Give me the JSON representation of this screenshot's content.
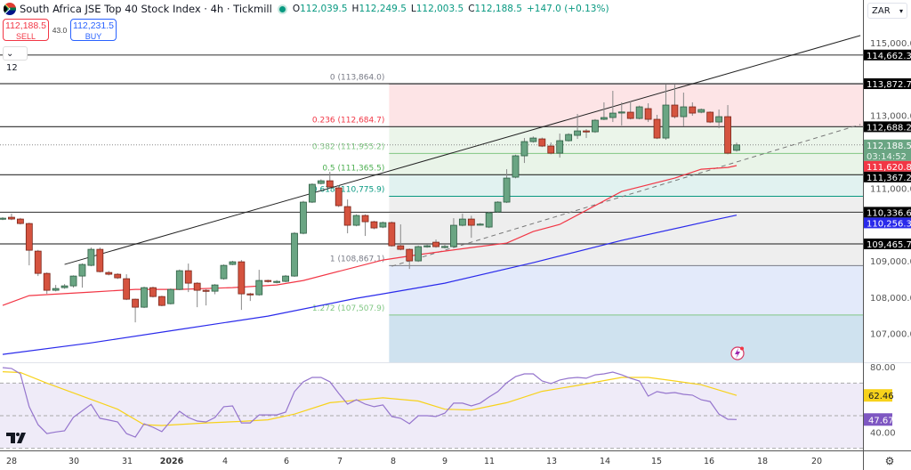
{
  "header": {
    "title": "South Africa JSE Top 40 Stock Index · 4h · Tickmill",
    "ohlc": [
      {
        "k": "O",
        "v": "112,039.5"
      },
      {
        "k": "H",
        "v": "112,249.5"
      },
      {
        "k": "L",
        "v": "112,003.5"
      },
      {
        "k": "C",
        "v": "112,188.5"
      }
    ],
    "change": "+147.0 (+0.13%)"
  },
  "trade": {
    "sell_price": "112,188.5",
    "sell_label": "SELL",
    "spread": "43.0",
    "buy_price": "112,231.5",
    "buy_label": "BUY"
  },
  "indicators_count": "12",
  "currency": "ZAR",
  "colors": {
    "up": "#6aa583",
    "down": "#d5533f",
    "ma_fast": "#f23645",
    "ma_slow": "#2a2aeb",
    "rsi": "#9575cd",
    "rsi_ma": "#f7d21b",
    "price_tag": "#6aa583"
  },
  "chart_data": {
    "type": "candlestick",
    "title": "South Africa JSE Top 40 Stock Index · 4h · Tickmill",
    "ylim": [
      106300,
      116000
    ],
    "price_ticks": [
      "115,000.0",
      "113,000.0",
      "111,000.0",
      "109,000.0",
      "108,000.0",
      "107,000.0"
    ],
    "price_tick_values": [
      115000,
      113000,
      111000,
      109000,
      108000,
      107000
    ],
    "time_labels": [
      "28",
      "30",
      "31",
      "2026",
      "4",
      "6",
      "7",
      "8",
      "9",
      "11",
      "13",
      "14",
      "15",
      "16",
      "18",
      "20"
    ],
    "candles": [
      [
        110149,
        110200,
        110120,
        110173
      ],
      [
        110198,
        110300,
        110120,
        110149
      ],
      [
        110149,
        110180,
        110000,
        110026
      ],
      [
        110026,
        110050,
        108875,
        109291
      ],
      [
        109267,
        109300,
        108581,
        108654
      ],
      [
        108654,
        108680,
        108091,
        108189
      ],
      [
        108189,
        108336,
        108160,
        108238
      ],
      [
        108262,
        108360,
        108230,
        108311
      ],
      [
        108311,
        108600,
        108262,
        108581
      ],
      [
        108581,
        108930,
        108262,
        108900
      ],
      [
        108875,
        109365,
        108850,
        109316
      ],
      [
        109316,
        109365,
        108680,
        108703
      ],
      [
        108679,
        108720,
        108600,
        108630
      ],
      [
        108630,
        108660,
        108500,
        108532
      ],
      [
        108508,
        108630,
        107920,
        107944
      ],
      [
        107944,
        107960,
        107307,
        107724
      ],
      [
        107724,
        108290,
        107700,
        108262
      ],
      [
        108262,
        108290,
        107990,
        108017
      ],
      [
        108017,
        108040,
        107750,
        107772
      ],
      [
        107821,
        108240,
        107800,
        108213
      ],
      [
        108213,
        108760,
        108190,
        108728
      ],
      [
        108728,
        108924,
        108140,
        108385
      ],
      [
        108385,
        108410,
        107724,
        108189
      ],
      [
        108189,
        108220,
        107772,
        108164
      ],
      [
        108164,
        108360,
        108080,
        108336
      ],
      [
        108508,
        108900,
        108480,
        108875
      ],
      [
        108900,
        109000,
        108880,
        108973
      ],
      [
        108973,
        109022,
        107650,
        108091
      ],
      [
        108091,
        108120,
        107895,
        108066
      ],
      [
        108066,
        108752,
        108040,
        108459
      ],
      [
        108459,
        108480,
        108400,
        108434
      ],
      [
        108410,
        108470,
        108380,
        108434
      ],
      [
        108434,
        108610,
        108410,
        108581
      ],
      [
        108581,
        109790,
        108560,
        109757
      ],
      [
        109757,
        110650,
        109730,
        110615
      ],
      [
        110615,
        111130,
        110590,
        111105
      ],
      [
        111129,
        111240,
        111100,
        111202
      ],
      [
        111202,
        111447,
        111000,
        111031
      ],
      [
        111007,
        111080,
        110480,
        110517
      ],
      [
        110492,
        110688,
        109757,
        109978
      ],
      [
        109978,
        110280,
        109950,
        110247
      ],
      [
        110247,
        110280,
        109684,
        110075
      ],
      [
        110075,
        110100,
        109870,
        109904
      ],
      [
        109929,
        110080,
        109900,
        110051
      ],
      [
        110051,
        110080,
        109390,
        109414
      ],
      [
        109414,
        110002,
        109290,
        109316
      ],
      [
        109316,
        109340,
        108777,
        108998
      ],
      [
        108998,
        109420,
        108970,
        109390
      ],
      [
        109390,
        109460,
        109360,
        109414
      ],
      [
        109512,
        109585,
        109360,
        109390
      ],
      [
        109390,
        109440,
        109340,
        109395
      ],
      [
        109390,
        110173,
        109360,
        109978
      ],
      [
        109978,
        110296,
        109950,
        110149
      ],
      [
        110149,
        110240,
        109634,
        109978
      ],
      [
        110002,
        110040,
        109970,
        110010
      ],
      [
        109929,
        110350,
        109900,
        110321
      ],
      [
        110345,
        110640,
        110320,
        110615
      ],
      [
        110615,
        111521,
        110590,
        111276
      ],
      [
        111301,
        111920,
        111270,
        111889
      ],
      [
        111889,
        112378,
        111692,
        112280
      ],
      [
        112280,
        112420,
        112250,
        112378
      ],
      [
        112354,
        112390,
        112130,
        112158
      ],
      [
        112158,
        112256,
        111930,
        111962
      ],
      [
        111962,
        112501,
        111840,
        112305
      ],
      [
        112305,
        112510,
        112280,
        112476
      ],
      [
        112452,
        113040,
        112354,
        112574
      ],
      [
        112574,
        112623,
        112378,
        112550
      ],
      [
        112550,
        112900,
        112520,
        112868
      ],
      [
        112893,
        113360,
        112870,
        112942
      ],
      [
        112942,
        113677,
        112819,
        113064
      ],
      [
        113089,
        113360,
        112721,
        113095
      ],
      [
        113089,
        113383,
        112890,
        112917
      ],
      [
        112917,
        113270,
        112890,
        113236
      ],
      [
        113187,
        113334,
        112819,
        112893
      ],
      [
        112893,
        113016,
        112350,
        112378
      ],
      [
        112378,
        113848,
        112329,
        113285
      ],
      [
        113285,
        113848,
        112917,
        112966
      ],
      [
        112966,
        113628,
        112697,
        113236
      ],
      [
        113236,
        113360,
        112991,
        113064
      ],
      [
        113089,
        113190,
        113060,
        113162
      ],
      [
        113089,
        113110,
        112790,
        112819
      ],
      [
        112819,
        113162,
        112648,
        112966
      ],
      [
        112966,
        113285,
        111930,
        111962
      ],
      [
        112039.5,
        112249.5,
        112003.5,
        112188.5
      ]
    ],
    "ma_fast": [
      [
        0,
        107773
      ],
      [
        3,
        108042
      ],
      [
        10,
        108140
      ],
      [
        15,
        108213
      ],
      [
        20,
        108213
      ],
      [
        26,
        108262
      ],
      [
        31,
        108336
      ],
      [
        34,
        108459
      ],
      [
        43,
        109022
      ],
      [
        47,
        109169
      ],
      [
        53,
        109365
      ],
      [
        57,
        109488
      ],
      [
        60,
        109806
      ],
      [
        63,
        110002
      ],
      [
        70,
        110908
      ],
      [
        76,
        111276
      ],
      [
        79,
        111521
      ],
      [
        82,
        111570
      ],
      [
        83,
        111620.8
      ]
    ],
    "ma_slow": [
      [
        0,
        106425
      ],
      [
        10,
        106743
      ],
      [
        20,
        107111
      ],
      [
        30,
        107478
      ],
      [
        40,
        107968
      ],
      [
        43,
        108091
      ],
      [
        50,
        108385
      ],
      [
        60,
        108949
      ],
      [
        70,
        109561
      ],
      [
        80,
        110100
      ],
      [
        83,
        110256.3
      ]
    ],
    "horizontal_levels": [
      {
        "value": 114662.3,
        "label": "114,662.3"
      },
      {
        "value": 113872.7,
        "label": "113,872.7"
      },
      {
        "value": 112688.2,
        "label": "112,688.2"
      },
      {
        "value": 111367.2,
        "label": "111,367.2"
      },
      {
        "value": 110336.6,
        "label": "110,336.6"
      },
      {
        "value": 109465.7,
        "label": "109,465.7"
      }
    ],
    "last_price": {
      "value": 112188.5,
      "label": "112,188.5",
      "countdown": "03:14:52"
    },
    "ma_fast_tag": {
      "value": 111620.8,
      "label": "111,620.8"
    },
    "ma_slow_tag": {
      "value": 110256.3,
      "label": "110,256.3"
    },
    "trendline": {
      "from": [
        7,
        108900
      ],
      "to": [
        97,
        115200
      ]
    },
    "dashed_trendline": {
      "from": [
        44,
        108850
      ],
      "to": [
        97,
        112750
      ]
    },
    "fibonacci": {
      "start_index": 44,
      "levels": [
        {
          "ratio": "0",
          "value": 113864.0,
          "label": "0 (113,864.0)",
          "color": "#787b86",
          "fill": "#fde4e6"
        },
        {
          "ratio": "0.236",
          "value": 112684.7,
          "label": "0.236 (112,684.7)",
          "color": "#f23645",
          "fill": "#ebf5ea"
        },
        {
          "ratio": "0.382",
          "value": 111955.2,
          "label": "0.382 (111,955.2)",
          "color": "#81c784",
          "fill": "#e9f4e8"
        },
        {
          "ratio": "0.5",
          "value": 111365.5,
          "label": "0.5 (111,365.5)",
          "color": "#4caf50",
          "fill": "#e1f2f0"
        },
        {
          "ratio": "0.618",
          "value": 110775.9,
          "label": "0.618 (110,775.9)",
          "color": "#089981",
          "fill": "#eeeeee"
        },
        {
          "ratio": "1",
          "value": 108867.1,
          "label": "1 (108,867.1)",
          "color": "#787b86",
          "fill": "#e3eafa"
        },
        {
          "ratio": "1.272",
          "value": 107507.9,
          "label": "1.272 (107,507.9)",
          "color": "#81c784",
          "fill": "#cfe2ef"
        }
      ]
    },
    "rsi": {
      "ylim": [
        25,
        85
      ],
      "ticks": [
        "80.00",
        "40.00"
      ],
      "tick_values": [
        80,
        40
      ],
      "bands": [
        70,
        50,
        30
      ],
      "values": [
        79.5,
        79,
        75.7,
        55.5,
        44.5,
        39,
        40,
        40.7,
        49,
        53,
        57,
        48.4,
        47.3,
        46.2,
        39,
        36.9,
        45,
        42.9,
        40.2,
        46.7,
        52.7,
        48.9,
        46.7,
        46.2,
        48.9,
        55.5,
        56,
        45.6,
        45.6,
        50.5,
        50.5,
        50.5,
        52.2,
        64.8,
        70.8,
        73.5,
        73.5,
        70.8,
        63.7,
        57.1,
        59.8,
        57.1,
        55.5,
        56.6,
        49.5,
        48.4,
        45.1,
        50,
        50,
        49.5,
        51.6,
        57.7,
        57.7,
        56,
        57.7,
        61.5,
        64.8,
        70.2,
        74,
        75.7,
        75.7,
        71.3,
        69.7,
        71.9,
        73,
        73.5,
        73,
        75.1,
        75.7,
        76.8,
        75.1,
        73,
        71.3,
        62,
        64.8,
        63.7,
        64.2,
        63.1,
        62.6,
        59.8,
        58.7,
        51,
        47.8,
        47.67
      ],
      "ma": [
        [
          0,
          77
        ],
        [
          2,
          76.5
        ],
        [
          5,
          70
        ],
        [
          10,
          60
        ],
        [
          13,
          54
        ],
        [
          16,
          44.5
        ],
        [
          18,
          44
        ],
        [
          23,
          45.6
        ],
        [
          27,
          46.5
        ],
        [
          30,
          47.5
        ],
        [
          33,
          51
        ],
        [
          37,
          58
        ],
        [
          43,
          61
        ],
        [
          47,
          59
        ],
        [
          50,
          54
        ],
        [
          53,
          53.5
        ],
        [
          57,
          58
        ],
        [
          61,
          65
        ],
        [
          65,
          68.6
        ],
        [
          70,
          73.5
        ],
        [
          73,
          73.5
        ],
        [
          76,
          71.3
        ],
        [
          79,
          69
        ],
        [
          83,
          62.46
        ]
      ],
      "value_label": "47.67",
      "ma_label": "62.46"
    }
  }
}
